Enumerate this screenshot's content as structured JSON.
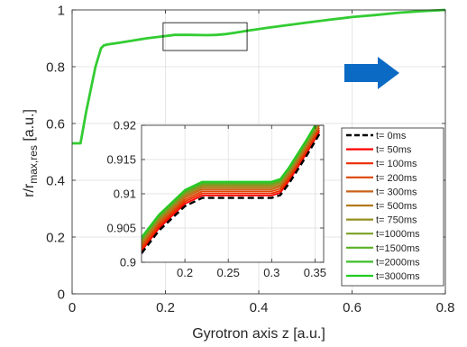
{
  "chart_data": [
    {
      "type": "line",
      "xlabel": "Gyrotron axis z [a.u.]",
      "ylabel_main": "r/r",
      "ylabel_sub": "max,res",
      "ylabel_unit": " [a.u.]",
      "xlim": [
        0,
        0.8
      ],
      "ylim": [
        0,
        1
      ],
      "x_ticks": [
        0,
        0.2,
        0.4,
        0.6,
        0.8
      ],
      "x_tick_labels": [
        "0",
        "0.2",
        "0.4",
        "0.6",
        "0.8"
      ],
      "y_ticks": [
        0,
        0.2,
        0.4,
        0.6,
        0.8,
        1
      ],
      "y_tick_labels": [
        "0",
        "0.2",
        "0.4",
        "0.6",
        "0.8",
        "1"
      ],
      "grid": true,
      "series": [
        {
          "color": "#33cc33",
          "x": [
            0,
            0.018,
            0.03,
            0.05,
            0.062,
            0.068,
            0.075,
            0.1,
            0.13,
            0.16,
            0.19,
            0.22,
            0.25,
            0.29,
            0.31,
            0.33,
            0.35,
            0.38,
            0.42,
            0.46,
            0.5,
            0.55,
            0.6,
            0.65,
            0.7,
            0.75,
            0.8
          ],
          "y": [
            0.53,
            0.53,
            0.64,
            0.8,
            0.865,
            0.875,
            0.878,
            0.884,
            0.892,
            0.9,
            0.906,
            0.912,
            0.912,
            0.911,
            0.912,
            0.915,
            0.92,
            0.928,
            0.937,
            0.946,
            0.955,
            0.965,
            0.975,
            0.982,
            0.99,
            0.996,
            1.0
          ]
        }
      ],
      "zoom_box": {
        "x": [
          0.195,
          0.375
        ],
        "y": [
          0.857,
          0.955
        ]
      },
      "arrow_color": "#0a6ac4"
    },
    {
      "type": "line",
      "xlim": [
        0.15,
        0.36
      ],
      "ylim": [
        0.9,
        0.92
      ],
      "x_ticks": [
        0.2,
        0.25,
        0.3,
        0.35
      ],
      "x_tick_labels": [
        "0.2",
        "0.25",
        "0.3",
        "0.35"
      ],
      "y_ticks": [
        0.9,
        0.905,
        0.91,
        0.915,
        0.92
      ],
      "y_tick_labels": [
        "0.9",
        "0.905",
        "0.91",
        "0.915",
        "0.92"
      ],
      "grid": true,
      "legend_position": "right",
      "series": [
        {
          "name": "t=    0ms",
          "color": "#000000",
          "dash": true,
          "offset": 0.0,
          "x": [
            0.15,
            0.17,
            0.2,
            0.22,
            0.25,
            0.28,
            0.3,
            0.31,
            0.32,
            0.34,
            0.355
          ],
          "y": [
            0.9013,
            0.9046,
            0.9082,
            0.9094,
            0.9094,
            0.9094,
            0.9094,
            0.9098,
            0.9115,
            0.9155,
            0.9187
          ]
        },
        {
          "name": "t=   50ms",
          "color": "#ff0000",
          "dash": false,
          "offset": 0.00035
        },
        {
          "name": "t=  100ms",
          "color": "#ee2a00",
          "dash": false,
          "offset": 0.00065
        },
        {
          "name": "t=  200ms",
          "color": "#dd4500",
          "dash": false,
          "offset": 0.00095
        },
        {
          "name": "t=  300ms",
          "color": "#c8621a",
          "dash": false,
          "offset": 0.00125
        },
        {
          "name": "t=  500ms",
          "color": "#b27a1a",
          "dash": false,
          "offset": 0.0015
        },
        {
          "name": "t=  750ms",
          "color": "#949020",
          "dash": false,
          "offset": 0.00175
        },
        {
          "name": "t=1000ms",
          "color": "#7aa022",
          "dash": false,
          "offset": 0.00195
        },
        {
          "name": "t=1500ms",
          "color": "#58b026",
          "dash": false,
          "offset": 0.00212
        },
        {
          "name": "t=2000ms",
          "color": "#3dbe2a",
          "dash": false,
          "offset": 0.00226
        },
        {
          "name": "t=3000ms",
          "color": "#22cc22",
          "dash": false,
          "offset": 0.00238
        }
      ]
    }
  ]
}
